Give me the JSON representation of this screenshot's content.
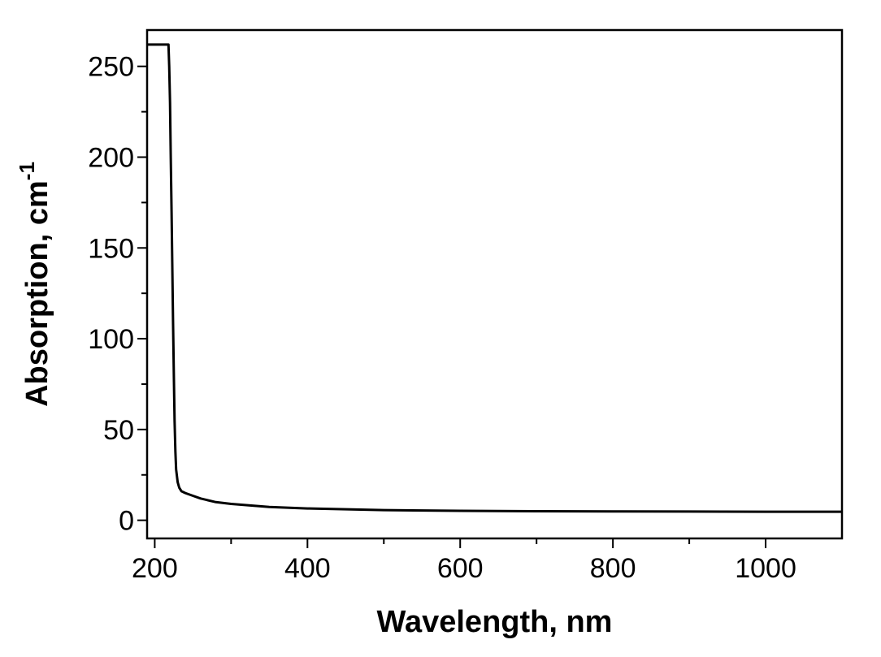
{
  "chart_data": {
    "type": "line",
    "title": "",
    "xlabel": "Wavelength, nm",
    "ylabel_main": "Absorption, cm",
    "ylabel_sup": "-1",
    "xlim": [
      190,
      1100
    ],
    "ylim": [
      -10,
      270
    ],
    "xticks": [
      200,
      400,
      600,
      800,
      1000
    ],
    "xticks_minor": [
      300,
      500,
      700,
      900
    ],
    "yticks": [
      0,
      50,
      100,
      150,
      200,
      250
    ],
    "yticks_minor": [
      25,
      75,
      125,
      175,
      225
    ],
    "grid": false,
    "legend": "none",
    "series": [
      {
        "color": "#000000",
        "x": [
          190,
          200,
          210,
          218,
          219,
          220,
          221,
          222,
          223,
          224,
          225,
          226,
          227,
          228,
          230,
          232,
          235,
          240,
          250,
          260,
          280,
          300,
          350,
          400,
          500,
          600,
          700,
          800,
          900,
          1000,
          1100
        ],
        "y": [
          262,
          262,
          262,
          262,
          250,
          230,
          200,
          170,
          140,
          110,
          80,
          55,
          38,
          28,
          21,
          18,
          16,
          15,
          13.5,
          12,
          10,
          9,
          7.3,
          6.5,
          5.6,
          5.2,
          5.0,
          4.9,
          4.8,
          4.7,
          4.7
        ]
      }
    ]
  }
}
